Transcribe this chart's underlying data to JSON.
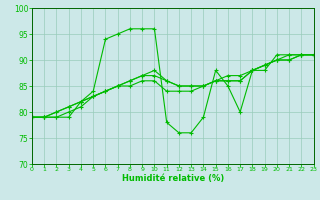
{
  "xlabel": "Humidité relative (%)",
  "bg_color": "#cce8e8",
  "grid_color": "#99ccbb",
  "line_color": "#00bb00",
  "spine_color": "#006600",
  "ylim": [
    70,
    100
  ],
  "xlim": [
    0,
    23
  ],
  "yticks": [
    70,
    75,
    80,
    85,
    90,
    95,
    100
  ],
  "xticks": [
    0,
    1,
    2,
    3,
    4,
    5,
    6,
    7,
    8,
    9,
    10,
    11,
    12,
    13,
    14,
    15,
    16,
    17,
    18,
    19,
    20,
    21,
    22,
    23
  ],
  "series": [
    [
      79,
      79,
      79,
      79,
      82,
      84,
      94,
      95,
      96,
      96,
      96,
      78,
      76,
      76,
      79,
      88,
      85,
      80,
      88,
      88,
      91,
      91,
      91,
      91
    ],
    [
      79,
      79,
      79,
      80,
      81,
      83,
      84,
      85,
      85,
      86,
      86,
      84,
      84,
      84,
      85,
      86,
      86,
      86,
      88,
      89,
      90,
      90,
      91,
      91
    ],
    [
      79,
      79,
      80,
      81,
      82,
      83,
      84,
      85,
      86,
      87,
      87,
      86,
      85,
      85,
      85,
      86,
      86,
      86,
      88,
      89,
      90,
      90,
      91,
      91
    ],
    [
      79,
      79,
      80,
      81,
      82,
      83,
      84,
      85,
      86,
      87,
      88,
      86,
      85,
      85,
      85,
      86,
      87,
      87,
      88,
      89,
      90,
      91,
      91,
      91
    ]
  ]
}
